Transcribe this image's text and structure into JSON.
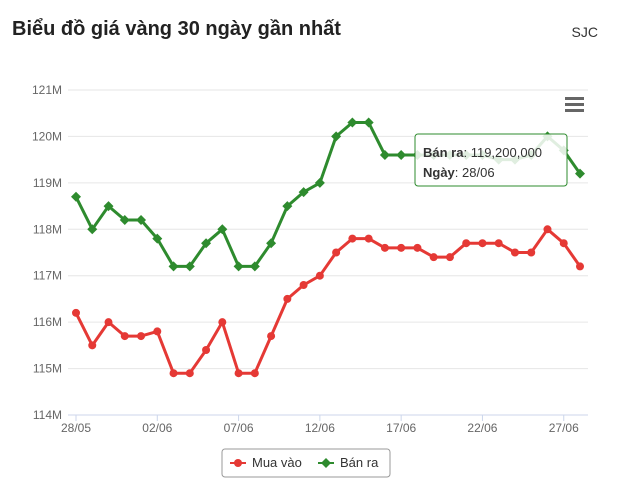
{
  "header": {
    "title": "Biểu đồ giá vàng 30 ngày gần nhất",
    "brand": "SJC"
  },
  "menu": {
    "icon": "hamburger-menu-icon"
  },
  "tooltip": {
    "label1": "Bán ra",
    "value1": "119,200,000",
    "label2": "Ngày",
    "value2": "28/06"
  },
  "chart_data": {
    "type": "line",
    "title": "Biểu đồ giá vàng 30 ngày gần nhất",
    "ylim": [
      114000000,
      121000000
    ],
    "ytick_values": [
      114000000,
      115000000,
      116000000,
      117000000,
      118000000,
      119000000,
      120000000,
      121000000
    ],
    "ytick_labels": [
      "114M",
      "115M",
      "116M",
      "117M",
      "118M",
      "119M",
      "120M",
      "121M"
    ],
    "x_index_range": [
      0,
      31
    ],
    "xtick_index": [
      0,
      5,
      10,
      15,
      20,
      25,
      30
    ],
    "xtick_labels": [
      "28/05",
      "02/06",
      "07/06",
      "12/06",
      "17/06",
      "22/06",
      "27/06"
    ],
    "x": [
      "28/05",
      "29/05",
      "30/05",
      "31/05",
      "01/06",
      "02/06",
      "03/06",
      "04/06",
      "05/06",
      "06/06",
      "07/06",
      "08/06",
      "09/06",
      "10/06",
      "11/06",
      "12/06",
      "13/06",
      "14/06",
      "15/06",
      "16/06",
      "17/06",
      "18/06",
      "19/06",
      "20/06",
      "21/06",
      "22/06",
      "23/06",
      "24/06",
      "25/06",
      "26/06",
      "27/06",
      "28/06"
    ],
    "series": [
      {
        "name": "Mua vào",
        "color": "#e53935",
        "marker": "circle",
        "values": [
          116200000,
          115500000,
          116000000,
          115700000,
          115700000,
          115800000,
          114900000,
          114900000,
          115400000,
          116000000,
          114900000,
          114900000,
          115700000,
          116500000,
          116800000,
          117000000,
          117500000,
          117800000,
          117800000,
          117600000,
          117600000,
          117600000,
          117400000,
          117400000,
          117700000,
          117700000,
          117700000,
          117500000,
          117500000,
          118000000,
          117700000,
          117200000
        ]
      },
      {
        "name": "Bán ra",
        "color": "#2e8b2e",
        "marker": "diamond",
        "values": [
          118700000,
          118000000,
          118500000,
          118200000,
          118200000,
          117800000,
          117200000,
          117200000,
          117700000,
          118000000,
          117200000,
          117200000,
          117700000,
          118500000,
          118800000,
          119000000,
          120000000,
          120300000,
          120300000,
          119600000,
          119600000,
          119600000,
          119600000,
          119600000,
          119600000,
          119600000,
          119500000,
          119500000,
          119600000,
          120000000,
          119700000,
          119200000
        ]
      }
    ],
    "legend": [
      "Mua vào",
      "Bán ra"
    ],
    "legend_position": "bottom",
    "grid": true
  }
}
